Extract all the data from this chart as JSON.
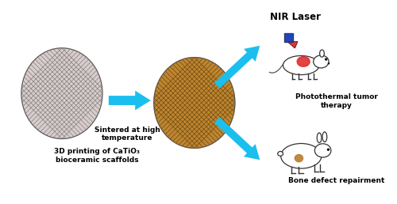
{
  "background_color": "#ffffff",
  "fig_width": 5.0,
  "fig_height": 2.58,
  "dpi": 100,
  "labels": {
    "scaffold_3d": "3D printing of CaTiO₃\nbioceramic scaffolds",
    "sintered": "Sintered at high\ntemperature",
    "nir": "NIR Laser",
    "photothermal": "Photothermal tumor\ntherapy",
    "bone": "Bone defect repairment"
  },
  "arrow_color": "#1bbfee",
  "text_color": "#000000",
  "text_fontsize": 6.5,
  "bold_fontsize": 7.5,
  "nir_fontsize": 8.5,
  "scaffold_white_base": "#d9cccc",
  "scaffold_white_line": "#777777",
  "scaffold_brown_base": "#bf8530",
  "scaffold_brown_line": "#6b4a10"
}
